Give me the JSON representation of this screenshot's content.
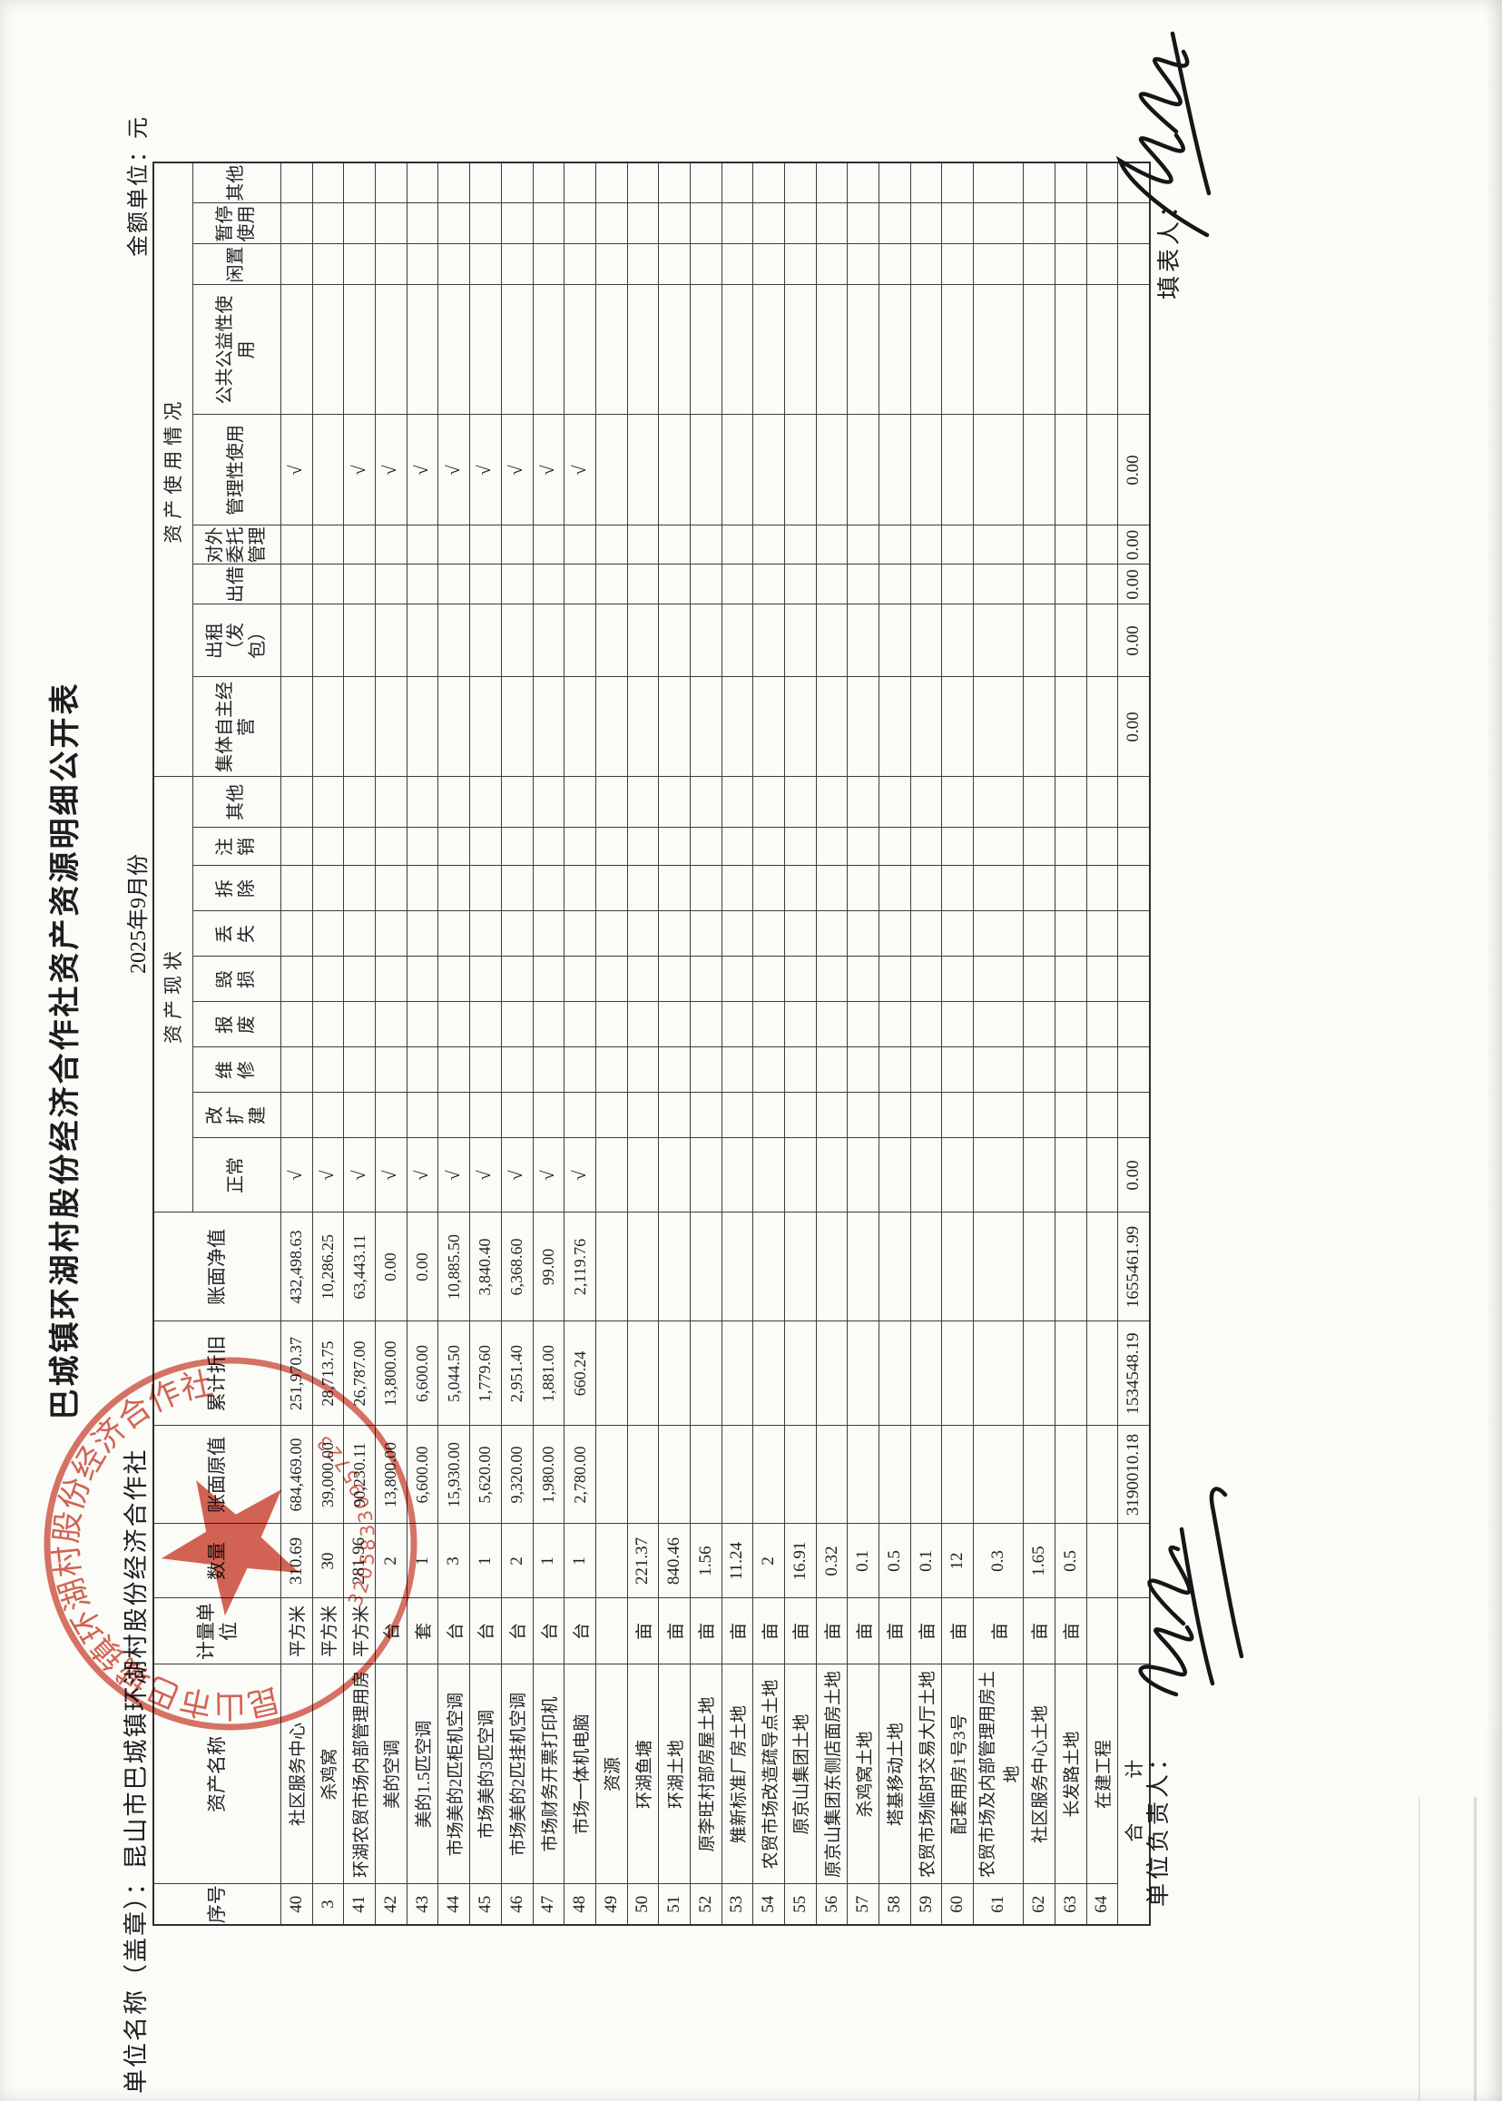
{
  "page": {
    "title": "巴城镇环湖村股份经济合作社资产资源明细公开表",
    "unit_label": "单位名称（盖章）：昆山市巴城镇环湖村股份经济合作社",
    "period": "2025年9月份",
    "amount_unit": "金额单位：元",
    "manager_label": "单位负责人：",
    "preparer_label": "填表人："
  },
  "table": {
    "main_headers": [
      "序号",
      "资产名称",
      "计量单\n位",
      "数量",
      "账面原值",
      "累计折旧",
      "账面净值"
    ],
    "group_headers": [
      "资产现状",
      "资产使用情况"
    ],
    "status_headers": [
      "正常",
      "改\n扩\n建",
      "维\n修",
      "报\n废",
      "毁\n损",
      "丢\n失",
      "拆\n除",
      "注\n销",
      "其他"
    ],
    "usage_headers": [
      "集体自主经\n营",
      "出租（发\n包）",
      "出借",
      "对外\n委托\n管理",
      "管理性使用",
      "公共公益性使\n用",
      "闲置",
      "暂停\n使用",
      "其他"
    ],
    "check_glyph": "√",
    "rows": [
      [
        "40",
        "社区服务中心",
        "平方米",
        "310.69",
        "684,469.00",
        "251,970.37",
        "432,498.63",
        "√",
        "√"
      ],
      [
        "3",
        "杀鸡窝",
        "平方米",
        "30",
        "39,000.00",
        "28,713.75",
        "10,286.25",
        "√",
        ""
      ],
      [
        "41",
        "环湖农贸市场内部管理用房",
        "平方米",
        "281.96",
        "90,230.11",
        "26,787.00",
        "63,443.11",
        "√",
        "√"
      ],
      [
        "42",
        "美的空调",
        "台",
        "2",
        "13,800.00",
        "13,800.00",
        "0.00",
        "√",
        "√"
      ],
      [
        "43",
        "美的1.5匹空调",
        "套",
        "1",
        "6,600.00",
        "6,600.00",
        "0.00",
        "√",
        "√"
      ],
      [
        "44",
        "市场美的2匹柜机空调",
        "台",
        "3",
        "15,930.00",
        "5,044.50",
        "10,885.50",
        "√",
        "√"
      ],
      [
        "45",
        "市场美的3匹空调",
        "台",
        "1",
        "5,620.00",
        "1,779.60",
        "3,840.40",
        "√",
        "√"
      ],
      [
        "46",
        "市场美的2匹挂机空调",
        "台",
        "2",
        "9,320.00",
        "2,951.40",
        "6,368.60",
        "√",
        "√"
      ],
      [
        "47",
        "市场财务开票打印机",
        "台",
        "1",
        "1,980.00",
        "1,881.00",
        "99.00",
        "√",
        "√"
      ],
      [
        "48",
        "市场一体机电脑",
        "台",
        "1",
        "2,780.00",
        "660.24",
        "2,119.76",
        "√",
        "√"
      ],
      [
        "49",
        "资源",
        "",
        "",
        "",
        "",
        "",
        "",
        ""
      ],
      [
        "50",
        "环湖鱼塘",
        "亩",
        "221.37",
        "",
        "",
        "",
        "",
        ""
      ],
      [
        "51",
        "环湖土地",
        "亩",
        "840.46",
        "",
        "",
        "",
        "",
        ""
      ],
      [
        "52",
        "原李旺村部房屋土地",
        "亩",
        "1.56",
        "",
        "",
        "",
        "",
        ""
      ],
      [
        "53",
        "雉新标准厂房土地",
        "亩",
        "11.24",
        "",
        "",
        "",
        "",
        ""
      ],
      [
        "54",
        "农贸市场改造疏导点土地",
        "亩",
        "2",
        "",
        "",
        "",
        "",
        ""
      ],
      [
        "55",
        "原京山集团土地",
        "亩",
        "16.91",
        "",
        "",
        "",
        "",
        ""
      ],
      [
        "56",
        "原京山集团东侧店面房土地",
        "亩",
        "0.32",
        "",
        "",
        "",
        "",
        ""
      ],
      [
        "57",
        "杀鸡窝土地",
        "亩",
        "0.1",
        "",
        "",
        "",
        "",
        ""
      ],
      [
        "58",
        "塔基移动土地",
        "亩",
        "0.5",
        "",
        "",
        "",
        "",
        ""
      ],
      [
        "59",
        "农贸市场临时交易大厅土地",
        "亩",
        "0.1",
        "",
        "",
        "",
        "",
        ""
      ],
      [
        "60",
        "配套用房1号3号",
        "亩",
        "12",
        "",
        "",
        "",
        "",
        ""
      ],
      [
        "61",
        "农贸市场及内部管理用房土地",
        "亩",
        "0.3",
        "",
        "",
        "",
        "",
        ""
      ],
      [
        "62",
        "社区服务中心土地",
        "亩",
        "1.65",
        "",
        "",
        "",
        "",
        ""
      ],
      [
        "63",
        "长发路土地",
        "亩",
        "0.5",
        "",
        "",
        "",
        "",
        ""
      ],
      [
        "64",
        "在建工程",
        "",
        "",
        "",
        "",
        "",
        "",
        ""
      ]
    ],
    "total": {
      "label": "合　计",
      "original": "3190010.18",
      "depreciation": "1534548.19",
      "net": "1655461.99",
      "normal": "0.00",
      "self_operate": "0.00",
      "rent": "0.00",
      "lend": "0.00",
      "entrust": "0.00",
      "manage": "0.00"
    }
  },
  "stamp": {
    "ring_text": "昆山市巴城镇环湖村股份经济合作社",
    "serial": "3205833095723",
    "color": "#c8402f"
  }
}
